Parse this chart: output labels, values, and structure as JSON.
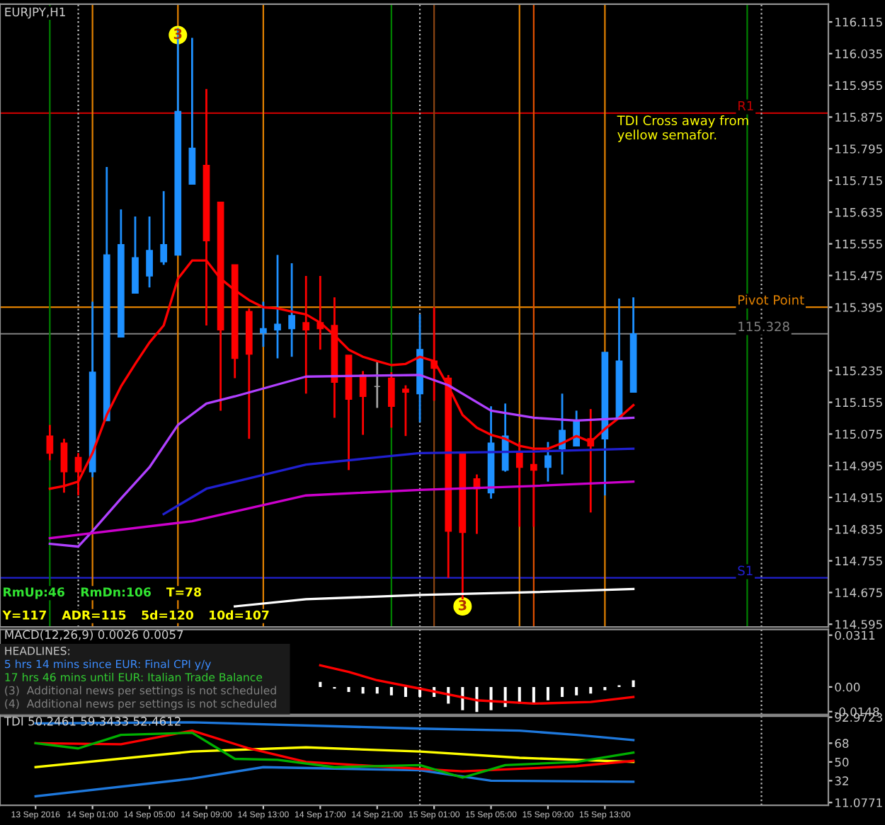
{
  "chart_data": [
    {
      "type": "candlestick",
      "title": "EURJPY,H1",
      "x": [
        "2016-09-13T22:00",
        "2016-09-13T23:00",
        "2016-09-14T00:00",
        "2016-09-14T01:00",
        "2016-09-14T02:00",
        "2016-09-14T03:00",
        "2016-09-14T04:00",
        "2016-09-14T05:00",
        "2016-09-14T06:00",
        "2016-09-14T07:00",
        "2016-09-14T08:00",
        "2016-09-14T09:00",
        "2016-09-14T10:00",
        "2016-09-14T11:00",
        "2016-09-14T12:00",
        "2016-09-14T13:00",
        "2016-09-14T14:00",
        "2016-09-14T15:00",
        "2016-09-14T16:00",
        "2016-09-14T17:00",
        "2016-09-14T18:00",
        "2016-09-14T19:00",
        "2016-09-14T20:00",
        "2016-09-14T21:00",
        "2016-09-14T22:00",
        "2016-09-14T23:00",
        "2016-09-15T00:00",
        "2016-09-15T01:00",
        "2016-09-15T02:00",
        "2016-09-15T03:00",
        "2016-09-15T04:00",
        "2016-09-15T05:00",
        "2016-09-15T06:00",
        "2016-09-15T07:00",
        "2016-09-15T08:00",
        "2016-09-15T09:00",
        "2016-09-15T10:00",
        "2016-09-15T11:00",
        "2016-09-15T12:00",
        "2016-09-15T13:00",
        "2016-09-15T14:00",
        "2016-09-15T15:00"
      ],
      "ohlc": [
        [
          115.07,
          115.098,
          115.009,
          115.027
        ],
        [
          115.052,
          115.063,
          114.927,
          114.98
        ],
        [
          115.016,
          115.027,
          114.92,
          114.98
        ],
        [
          114.98,
          115.409,
          114.966,
          115.231
        ],
        [
          115.109,
          115.749,
          115.109,
          115.527
        ],
        [
          115.32,
          115.642,
          115.32,
          115.553
        ],
        [
          115.431,
          115.624,
          115.431,
          115.52
        ],
        [
          115.474,
          115.624,
          115.445,
          115.538
        ],
        [
          115.51,
          115.688,
          115.502,
          115.553
        ],
        [
          115.527,
          116.1,
          115.527,
          115.889
        ],
        [
          115.706,
          116.075,
          115.706,
          115.796
        ],
        [
          115.753,
          115.946,
          115.349,
          115.563
        ],
        [
          115.66,
          115.66,
          115.134,
          115.338
        ],
        [
          115.502,
          115.502,
          115.216,
          115.266
        ],
        [
          115.384,
          115.392,
          115.063,
          115.277
        ],
        [
          115.331,
          115.409,
          115.295,
          115.341
        ],
        [
          115.338,
          115.527,
          115.266,
          115.352
        ],
        [
          115.341,
          115.506,
          115.27,
          115.374
        ],
        [
          115.356,
          115.474,
          115.177,
          115.338
        ],
        [
          115.356,
          115.474,
          115.288,
          115.341
        ],
        [
          115.349,
          115.42,
          115.116,
          115.206
        ],
        [
          115.274,
          115.274,
          114.984,
          115.163
        ],
        [
          115.224,
          115.234,
          115.073,
          115.17
        ],
        [
          115.195,
          115.259,
          115.141,
          115.195
        ],
        [
          115.216,
          115.231,
          115.091,
          115.145
        ],
        [
          115.188,
          115.198,
          115.07,
          115.181
        ],
        [
          115.177,
          115.377,
          115.105,
          115.288
        ],
        [
          115.259,
          115.395,
          115.159,
          115.241
        ],
        [
          115.216,
          115.224,
          114.712,
          114.83
        ],
        [
          115.027,
          115.027,
          114.658,
          114.827
        ],
        [
          114.962,
          114.973,
          114.823,
          114.937
        ],
        [
          114.927,
          115.145,
          114.912,
          115.052
        ],
        [
          114.984,
          115.152,
          114.98,
          115.07
        ],
        [
          115.027,
          115.055,
          114.841,
          114.991
        ],
        [
          114.998,
          115.038,
          114.841,
          114.984
        ],
        [
          114.991,
          115.055,
          114.955,
          115.02
        ],
        [
          115.038,
          115.177,
          114.973,
          115.084
        ],
        [
          115.045,
          115.134,
          115.045,
          115.109
        ],
        [
          115.063,
          115.138,
          114.877,
          115.045
        ],
        [
          115.063,
          115.281,
          114.92,
          115.281
        ],
        [
          115.116,
          115.417,
          115.116,
          115.259
        ],
        [
          115.181,
          115.42,
          115.181,
          115.328
        ]
      ],
      "colors": [
        "#ff0000",
        "#ff0000",
        "#ff0000",
        "#1e90ff",
        "#1e90ff",
        "#1e90ff",
        "#1e90ff",
        "#1e90ff",
        "#1e90ff",
        "#1e90ff",
        "#1e90ff",
        "#ff0000",
        "#ff0000",
        "#ff0000",
        "#ff0000",
        "#1e90ff",
        "#1e90ff",
        "#1e90ff",
        "#ff0000",
        "#ff0000",
        "#ff0000",
        "#ff0000",
        "#ff0000",
        "#a0a0a0",
        "#ff0000",
        "#ff0000",
        "#1e90ff",
        "#ff0000",
        "#ff0000",
        "#ff0000",
        "#ff0000",
        "#1e90ff",
        "#1e90ff",
        "#ff0000",
        "#ff0000",
        "#1e90ff",
        "#1e90ff",
        "#1e90ff",
        "#ff0000",
        "#1e90ff",
        "#1e90ff",
        "#1e90ff"
      ],
      "series": [
        {
          "type": "line",
          "color": "#ff0000",
          "values": [
            114.937,
            114.944,
            114.955,
            115.027,
            115.123,
            115.195,
            115.252,
            115.306,
            115.349,
            115.467,
            115.513,
            115.513,
            115.467,
            115.438,
            115.413,
            115.395,
            115.392,
            115.384,
            115.377,
            115.356,
            115.324,
            115.288,
            115.27,
            115.259,
            115.249,
            115.252,
            115.27,
            115.259,
            115.195,
            115.123,
            115.091,
            115.073,
            115.063,
            115.045,
            115.038,
            115.038,
            115.052,
            115.07,
            115.055,
            115.088,
            115.116,
            115.148
          ]
        },
        {
          "type": "line",
          "color": "#b040ff",
          "x": [
            "2016-09-13T22:00",
            "2016-09-14T00:00",
            "2016-09-14T01:00",
            "2016-09-14T03:00",
            "2016-09-14T05:00",
            "2016-09-14T07:00",
            "2016-09-14T09:00",
            "2016-09-14T11:00",
            "2016-09-14T16:00",
            "2016-09-15T00:00",
            "2016-09-15T02:00",
            "2016-09-15T05:00",
            "2016-09-15T08:00",
            "2016-09-15T11:00",
            "2016-09-15T15:00"
          ],
          "values": [
            114.798,
            114.791,
            114.83,
            114.912,
            114.991,
            115.098,
            115.152,
            115.17,
            115.22,
            115.224,
            115.198,
            115.134,
            115.116,
            115.109,
            115.116
          ]
        },
        {
          "type": "line",
          "color": "#2020d0",
          "x": [
            "2016-09-14T06:00",
            "2016-09-14T09:00",
            "2016-09-14T16:00",
            "2016-09-15T00:00",
            "2016-09-15T08:00",
            "2016-09-15T15:00"
          ],
          "values": [
            114.873,
            114.937,
            114.998,
            115.027,
            115.031,
            115.038
          ]
        },
        {
          "type": "line",
          "color": "#cc00cc",
          "x": [
            "2016-09-13T22:00",
            "2016-09-14T08:00",
            "2016-09-14T16:00",
            "2016-09-15T00:00",
            "2016-09-15T08:00",
            "2016-09-15T15:00"
          ],
          "values": [
            114.812,
            114.855,
            114.92,
            114.934,
            114.944,
            114.955
          ]
        },
        {
          "type": "line",
          "color": "#ffffff",
          "x": [
            "2016-09-14T11:00",
            "2016-09-14T16:00",
            "2016-09-15T00:00",
            "2016-09-15T08:00",
            "2016-09-15T15:00"
          ],
          "values": [
            114.64,
            114.658,
            114.669,
            114.676,
            114.684
          ]
        },
        {
          "type": "scatter",
          "marker": "circle",
          "color": "#ffff00",
          "x": [
            "2016-09-14T07:00",
            "2016-09-15T03:00"
          ],
          "values": [
            116.082,
            114.64
          ]
        }
      ],
      "ref_lines": [
        {
          "axis": "y",
          "value": 115.885,
          "label": "R1",
          "color": "#c00000"
        },
        {
          "axis": "y",
          "value": 115.395,
          "label": "Pivot Point",
          "color": "#e08000"
        },
        {
          "axis": "y",
          "value": 114.712,
          "label": "S1",
          "color": "#2020d0"
        },
        {
          "axis": "y",
          "value": 115.328,
          "label": "115.328",
          "color": "#808080"
        },
        {
          "axis": "x",
          "value": "2016-09-14T00:00",
          "color": "#c0c0c0",
          "line_style": "dotted"
        },
        {
          "axis": "x",
          "value": "2016-09-15T00:00",
          "color": "#c0c0c0",
          "line_style": "dotted"
        },
        {
          "axis": "x",
          "value": "2016-09-16T00:00",
          "color": "#c0c0c0",
          "line_style": "dotted"
        },
        {
          "axis": "x",
          "value": "2016-09-13T22:00",
          "color": "#008000"
        },
        {
          "axis": "x",
          "value": "2016-09-14T22:00",
          "color": "#008000"
        },
        {
          "axis": "x",
          "value": "2016-09-15T23:00",
          "color": "#008000"
        },
        {
          "axis": "x",
          "value": "2016-09-14T01:00",
          "color": "#e08000"
        },
        {
          "axis": "x",
          "value": "2016-09-14T07:00",
          "color": "#e08000"
        },
        {
          "axis": "x",
          "value": "2016-09-14T13:00",
          "color": "#e08000"
        },
        {
          "axis": "x",
          "value": "2016-09-15T01:00",
          "color": "#8b4513"
        },
        {
          "axis": "x",
          "value": "2016-09-15T07:00",
          "color": "#e08000"
        },
        {
          "axis": "x",
          "value": "2016-09-15T08:00",
          "color": "#e05000"
        },
        {
          "axis": "x",
          "value": "2016-09-15T13:00",
          "color": "#e08000"
        }
      ],
      "xlim": [
        "2016-09-13T18:30",
        "2016-09-16T04:42"
      ],
      "ylim": [
        114.588,
        116.16
      ],
      "yticks": [
        116.115,
        116.035,
        115.955,
        115.875,
        115.795,
        115.715,
        115.635,
        115.555,
        115.475,
        115.395,
        115.235,
        115.155,
        115.075,
        114.995,
        114.915,
        114.835,
        114.755,
        114.675,
        114.595
      ],
      "tick_labels": "y",
      "annotations": [
        "TDI Cross away from\nyellow semafor.",
        {
          "text": "3",
          "x": "2016-09-14T07:00",
          "y": 116.082
        },
        {
          "text": "3",
          "x": "2016-09-15T03:00",
          "y": 114.64
        },
        "RmUp:46",
        "RmDn:106",
        "T=78",
        "Y=117",
        "ADR=115",
        "5d=120",
        "10d=107"
      ]
    },
    {
      "type": "bar",
      "title": "MACD(12,26,9) 0.0026 0.0057",
      "series": [
        {
          "color": "#ffffff",
          "x": [
            "2016-09-14T17:00",
            "2016-09-14T18:00",
            "2016-09-14T19:00",
            "2016-09-14T20:00",
            "2016-09-14T21:00",
            "2016-09-14T22:00",
            "2016-09-14T23:00",
            "2016-09-15T00:00",
            "2016-09-15T01:00",
            "2016-09-15T02:00",
            "2016-09-15T03:00",
            "2016-09-15T04:00",
            "2016-09-15T05:00",
            "2016-09-15T06:00",
            "2016-09-15T07:00",
            "2016-09-15T08:00",
            "2016-09-15T09:00",
            "2016-09-15T10:00",
            "2016-09-15T11:00",
            "2016-09-15T12:00",
            "2016-09-15T13:00",
            "2016-09-15T14:00",
            "2016-09-15T15:00"
          ],
          "values": [
            0.003,
            -0.001,
            -0.003,
            -0.004,
            -0.004,
            -0.005,
            -0.006,
            -0.006,
            -0.006,
            -0.01,
            -0.014,
            -0.015,
            -0.014,
            -0.012,
            -0.01,
            -0.01,
            -0.008,
            -0.006,
            -0.005,
            -0.004,
            -0.002,
            0.001,
            0.004
          ]
        },
        {
          "type": "line",
          "color": "#ff0000",
          "x": [
            "2016-09-14T17:00",
            "2016-09-14T19:00",
            "2016-09-14T21:00",
            "2016-09-15T00:00",
            "2016-09-15T04:00",
            "2016-09-15T08:00",
            "2016-09-15T12:00",
            "2016-09-15T15:00"
          ],
          "values": [
            0.013,
            0.009,
            0.004,
            -0.001,
            -0.008,
            -0.01,
            -0.009,
            -0.006
          ]
        }
      ],
      "ref_lines": [
        {
          "axis": "x",
          "value": "2016-09-15T00:00",
          "color": "#c0c0c0",
          "line_style": "dotted"
        },
        {
          "axis": "x",
          "value": "2016-09-16T00:00",
          "color": "#c0c0c0",
          "line_style": "dotted"
        }
      ],
      "xlim": [
        "2016-09-13T18:30",
        "2016-09-16T04:42"
      ],
      "ylim": [
        -0.0165,
        0.0345
      ],
      "yticks": [
        0.0311,
        {
          "value": 0,
          "label": "0.00"
        },
        -0.0148
      ],
      "tick_labels": "y",
      "annotations": [
        "HEADLINES:",
        "5 hrs 14 mins since EUR: Final CPI y/y",
        "17 hrs 46 mins until EUR: Italian Trade Balance",
        "(3)  Additional news per settings is not scheduled",
        "(4)  Additional news per settings is not scheduled"
      ]
    },
    {
      "type": "line",
      "title": "TDI 50.2461 59.3433 52.4612",
      "series": [
        {
          "color": "#1e78dc",
          "x": [
            "2016-09-13T21:00",
            "2016-09-14T08:00",
            "2016-09-15T00:00",
            "2016-09-15T07:00",
            "2016-09-15T11:00",
            "2016-09-15T15:00"
          ],
          "values": [
            87,
            88,
            82,
            80,
            76,
            71
          ]
        },
        {
          "color": "#1e78dc",
          "x": [
            "2016-09-13T21:00",
            "2016-09-14T08:00",
            "2016-09-14T13:00",
            "2016-09-15T00:00",
            "2016-09-15T05:00",
            "2016-09-15T15:00"
          ],
          "values": [
            17,
            34,
            45,
            42,
            32,
            31
          ]
        },
        {
          "color": "#ffff00",
          "x": [
            "2016-09-13T21:00",
            "2016-09-14T08:00",
            "2016-09-14T16:00",
            "2016-09-15T00:00",
            "2016-09-15T07:00",
            "2016-09-15T15:00"
          ],
          "values": [
            45,
            60,
            64,
            60,
            54,
            50
          ]
        },
        {
          "color": "#ff0000",
          "x": [
            "2016-09-13T21:00",
            "2016-09-14T03:00",
            "2016-09-14T08:00",
            "2016-09-14T12:00",
            "2016-09-14T16:00",
            "2016-09-14T22:00",
            "2016-09-15T03:00",
            "2016-09-15T11:00",
            "2016-09-15T15:00"
          ],
          "values": [
            68,
            67,
            80,
            63,
            50,
            45,
            41,
            46,
            51
          ]
        },
        {
          "color": "#00b000",
          "x": [
            "2016-09-13T21:00",
            "2016-09-14T00:00",
            "2016-09-14T03:00",
            "2016-09-14T08:00",
            "2016-09-14T11:00",
            "2016-09-14T14:00",
            "2016-09-14T18:00",
            "2016-09-15T00:00",
            "2016-09-15T03:00",
            "2016-09-15T06:00",
            "2016-09-15T11:00",
            "2016-09-15T15:00"
          ],
          "values": [
            68,
            63,
            76,
            78,
            53,
            52,
            45,
            47,
            35,
            47,
            50,
            59
          ]
        }
      ],
      "ref_lines": [
        {
          "axis": "x",
          "value": "2016-09-15T00:00",
          "color": "#c0c0c0",
          "line_style": "dotted"
        },
        {
          "axis": "x",
          "value": "2016-09-16T00:00",
          "color": "#c0c0c0",
          "line_style": "dotted"
        }
      ],
      "xlim": [
        "2016-09-13T18:30",
        "2016-09-16T04:42"
      ],
      "ylim": [
        8.5,
        94
      ],
      "yticks": [
        92.9723,
        68,
        50,
        32,
        11.0771
      ],
      "xticks": [
        {
          "value": "2016-09-13T21:00",
          "label": "13 Sep 2016"
        },
        {
          "value": "2016-09-14T01:00",
          "label": "14 Sep 01:00"
        },
        {
          "value": "2016-09-14T05:00",
          "label": "14 Sep 05:00"
        },
        {
          "value": "2016-09-14T09:00",
          "label": "14 Sep 09:00"
        },
        {
          "value": "2016-09-14T13:00",
          "label": "14 Sep 13:00"
        },
        {
          "value": "2016-09-14T17:00",
          "label": "14 Sep 17:00"
        },
        {
          "value": "2016-09-14T21:00",
          "label": "14 Sep 21:00"
        },
        {
          "value": "2016-09-15T01:00",
          "label": "15 Sep 01:00"
        },
        {
          "value": "2016-09-15T05:00",
          "label": "15 Sep 05:00"
        },
        {
          "value": "2016-09-15T09:00",
          "label": "15 Sep 09:00"
        },
        {
          "value": "2016-09-15T13:00",
          "label": "15 Sep 13:00"
        }
      ]
    }
  ]
}
